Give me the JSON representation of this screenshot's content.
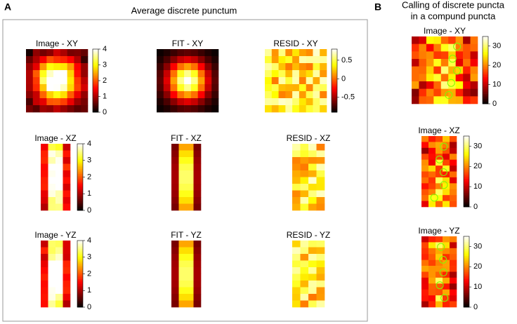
{
  "panel_a": {
    "letter": "A",
    "title": "Average discrete punctum",
    "plots": [
      {
        "title": "Image - XY",
        "colorbar": {
          "lim": [
            0,
            4
          ],
          "ticks": [
            0,
            1,
            2,
            3,
            4
          ]
        }
      },
      {
        "title": "FIT - XY"
      },
      {
        "title": "RESID - XY",
        "colorbar": {
          "lim": [
            -0.9,
            0.8
          ],
          "ticks": [
            -0.5,
            0,
            0.5
          ]
        }
      },
      {
        "title": "Image - XZ",
        "colorbar": {
          "lim": [
            0,
            4
          ],
          "ticks": [
            0,
            1,
            2,
            3,
            4
          ]
        }
      },
      {
        "title": "FIT - XZ"
      },
      {
        "title": "RESID - XZ"
      },
      {
        "title": "Image - YZ",
        "colorbar": {
          "lim": [
            0,
            4
          ],
          "ticks": [
            0,
            1,
            2,
            3,
            4
          ]
        }
      },
      {
        "title": "FIT - YZ"
      },
      {
        "title": "RESID - YZ"
      }
    ]
  },
  "panel_b": {
    "letter": "B",
    "title_lines": [
      "Calling of discrete puncta",
      "in a compund puncta"
    ],
    "plots": [
      {
        "title": "Image - XY",
        "colorbar": {
          "lim": [
            0,
            35
          ],
          "ticks": [
            0,
            10,
            20,
            30
          ]
        }
      },
      {
        "title": "Image - XZ",
        "colorbar": {
          "lim": [
            0,
            35
          ],
          "ticks": [
            0,
            10,
            20,
            30
          ]
        }
      },
      {
        "title": "Image - YZ",
        "colorbar": {
          "lim": [
            0,
            35
          ],
          "ticks": [
            0,
            10,
            20,
            30
          ]
        }
      }
    ]
  }
}
